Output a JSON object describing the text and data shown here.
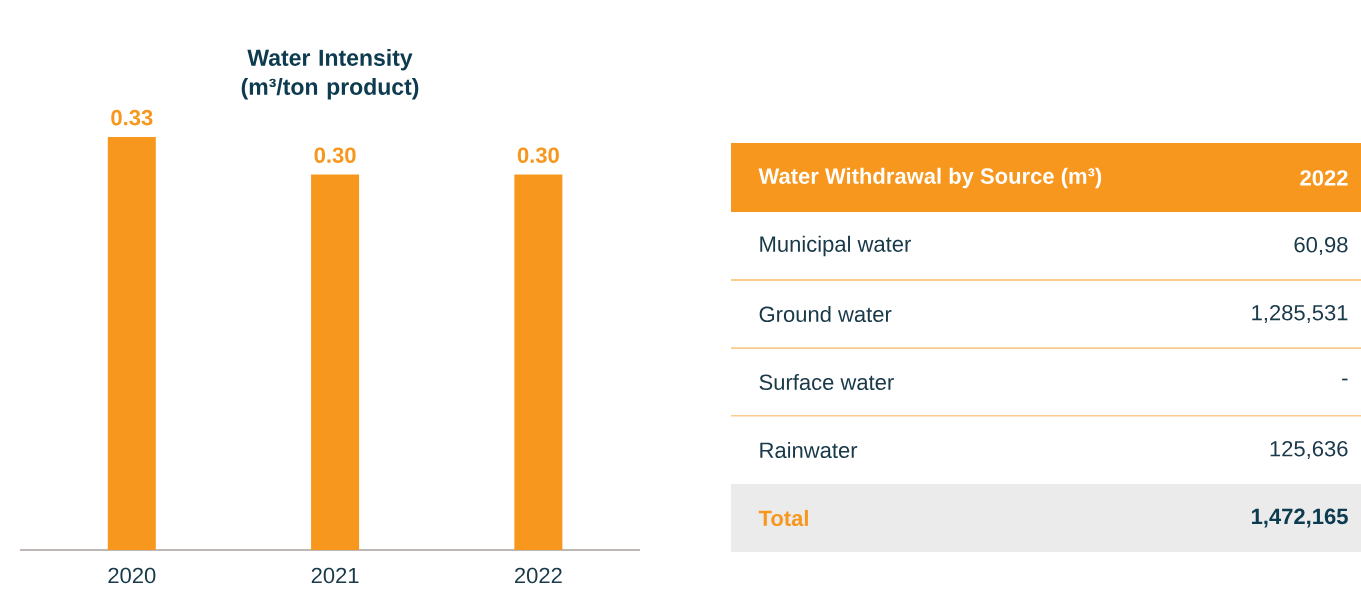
{
  "chart_data": [
    {
      "type": "bar",
      "title": "Water Intensity (m³/ton product)",
      "categories": [
        "2020",
        "2021",
        "2022"
      ],
      "values": [
        0.33,
        0.3,
        0.3
      ],
      "value_labels": [
        "0.33",
        "0.30",
        "0.30"
      ],
      "color": "#f7971e"
    },
    {
      "type": "other",
      "title": "Water Withdrawal by Source (m³)",
      "annotations": [
        "2022"
      ],
      "categories": [
        "Municipal water",
        "Ground water",
        "Surface water",
        "Rainwater",
        "Total"
      ],
      "value_labels": [
        "60,98",
        "1,285,531",
        "-",
        "125,636",
        "1,472,165"
      ]
    }
  ]
}
